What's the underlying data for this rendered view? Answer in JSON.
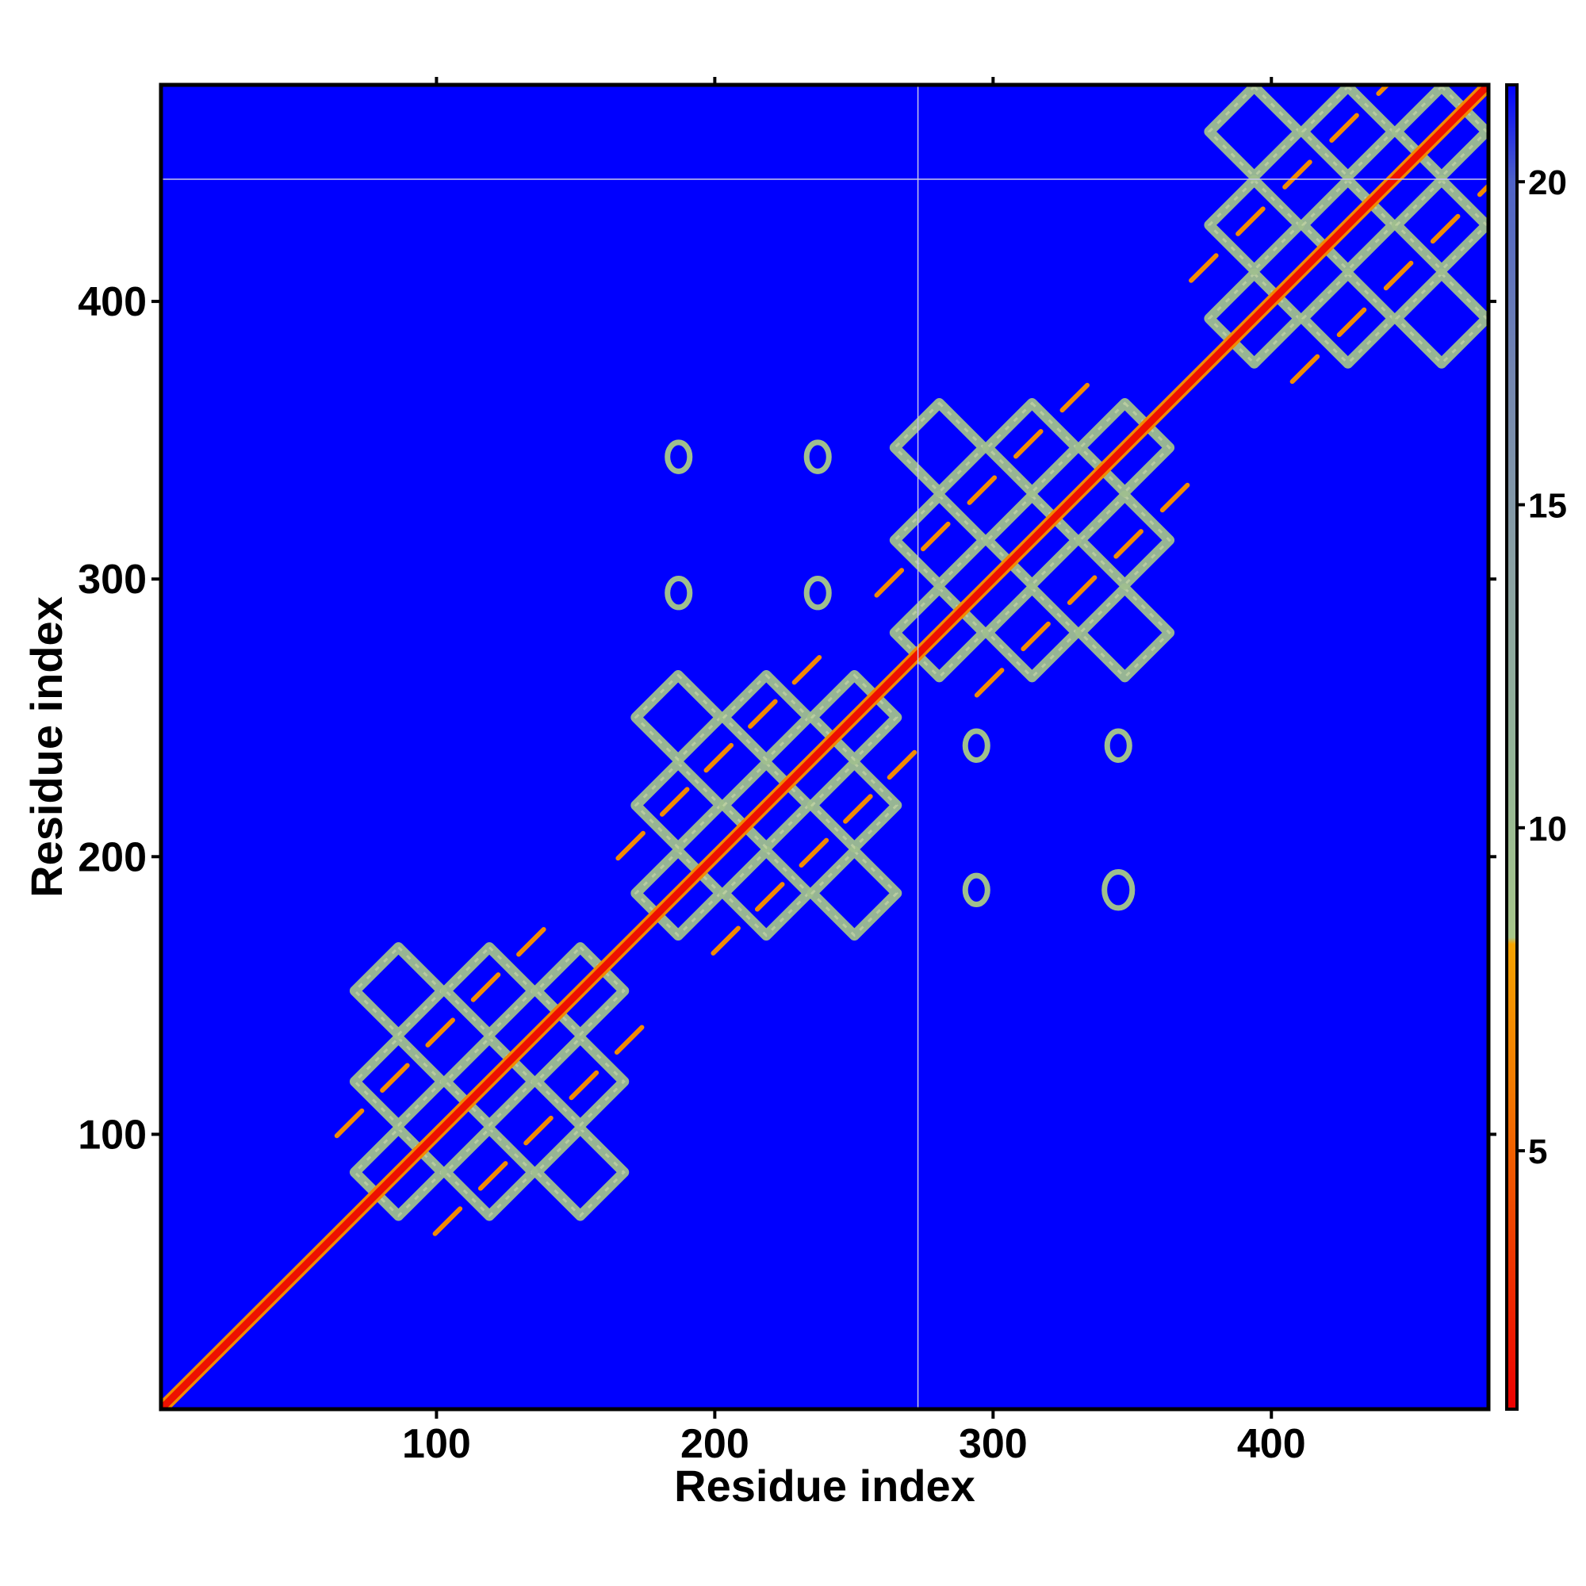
{
  "chart_data": {
    "type": "heatmap",
    "title": "",
    "xlabel": "Residue index",
    "ylabel": "Residue index",
    "xlim": [
      1,
      478
    ],
    "ylim": [
      1,
      478
    ],
    "x_ticks": [
      100,
      200,
      300,
      400
    ],
    "y_ticks": [
      100,
      200,
      300,
      400
    ],
    "colorbar": {
      "ticks": [
        5,
        10,
        15,
        20
      ],
      "range": [
        1,
        21.5
      ],
      "stops": [
        {
          "value": 1,
          "color": "#ee0000"
        },
        {
          "value": 3.5,
          "color": "#f03a00"
        },
        {
          "value": 6,
          "color": "#f27a00"
        },
        {
          "value": 8.2,
          "color": "#f5a300"
        },
        {
          "value": 8.3,
          "color": "#a7c68a"
        },
        {
          "value": 11,
          "color": "#94b597"
        },
        {
          "value": 14,
          "color": "#8aa1a3"
        },
        {
          "value": 17,
          "color": "#7386b0"
        },
        {
          "value": 20,
          "color": "#4e62c6"
        },
        {
          "value": 21.5,
          "color": "#0000ff"
        }
      ]
    },
    "background_value": 21.5,
    "background_color": "#0000ff",
    "diagonal_color": "#ee1100",
    "contact_color": "#9fbf8e",
    "strong_contact_color": "#f28a00",
    "domains": [
      {
        "start": 70,
        "end": 168
      },
      {
        "start": 171,
        "end": 266
      },
      {
        "start": 264,
        "end": 364
      },
      {
        "start": 377,
        "end": 478
      }
    ],
    "reference_lines": {
      "x": 273,
      "y": 444
    },
    "off_diagonal_patches": [
      {
        "x": 187,
        "y": 344,
        "r": 4
      },
      {
        "x": 237,
        "y": 344,
        "r": 4
      },
      {
        "x": 187,
        "y": 295,
        "r": 4
      },
      {
        "x": 237,
        "y": 295,
        "r": 4
      },
      {
        "x": 294,
        "y": 240,
        "r": 4
      },
      {
        "x": 345,
        "y": 240,
        "r": 4
      },
      {
        "x": 294,
        "y": 188,
        "r": 4
      },
      {
        "x": 345,
        "y": 188,
        "r": 5
      }
    ]
  }
}
